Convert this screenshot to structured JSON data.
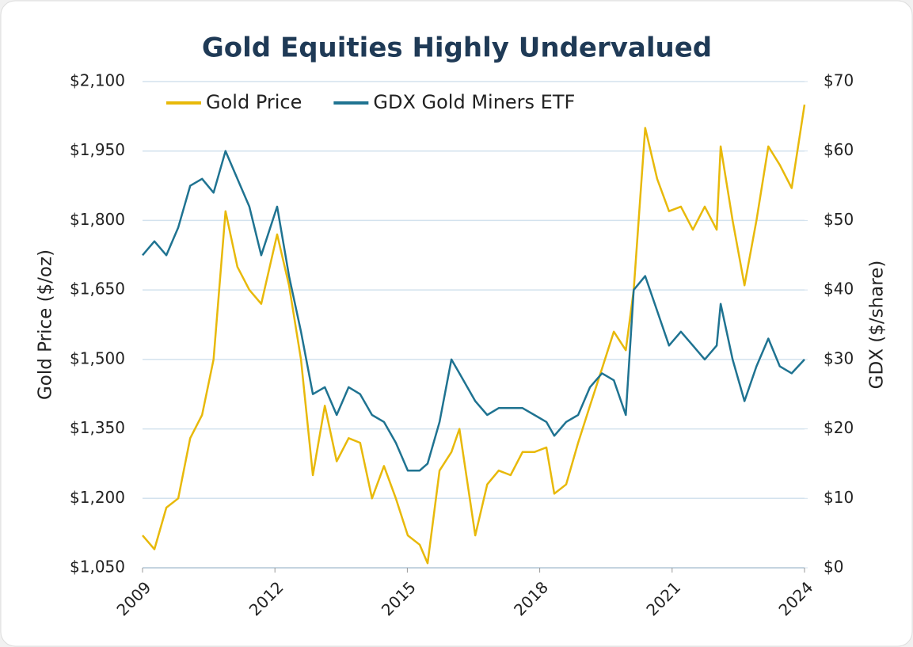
{
  "chart_data": {
    "type": "line",
    "title": "Gold Equities Highly Undervalued",
    "ylabel": "Gold Price ($/oz)",
    "y2label": "GDX ($/share)",
    "x": [
      2009.0,
      2009.27,
      2009.54,
      2009.81,
      2010.08,
      2010.35,
      2010.61,
      2010.88,
      2011.15,
      2011.42,
      2011.69,
      2012.05,
      2012.32,
      2012.59,
      2012.86,
      2013.13,
      2013.4,
      2013.67,
      2013.93,
      2014.2,
      2014.47,
      2014.74,
      2015.01,
      2015.28,
      2015.46,
      2015.73,
      2016.0,
      2016.18,
      2016.54,
      2016.81,
      2017.07,
      2017.34,
      2017.61,
      2017.88,
      2018.15,
      2018.33,
      2018.6,
      2018.87,
      2019.14,
      2019.41,
      2019.68,
      2019.95,
      2020.13,
      2020.39,
      2020.66,
      2020.93,
      2021.2,
      2021.47,
      2021.74,
      2022.01,
      2022.1,
      2022.37,
      2022.64,
      2022.91,
      2023.18,
      2023.44,
      2023.71,
      2024.0
    ],
    "series": [
      {
        "name": "Gold Price",
        "color": "#e8b90a",
        "axis": "y",
        "values": [
          1120,
          1090,
          1180,
          1200,
          1330,
          1380,
          1500,
          1820,
          1700,
          1650,
          1620,
          1770,
          1660,
          1500,
          1250,
          1400,
          1280,
          1330,
          1320,
          1200,
          1270,
          1200,
          1120,
          1100,
          1060,
          1260,
          1300,
          1350,
          1120,
          1230,
          1260,
          1250,
          1300,
          1300,
          1310,
          1210,
          1230,
          1320,
          1400,
          1480,
          1560,
          1520,
          1650,
          2000,
          1890,
          1820,
          1830,
          1780,
          1830,
          1780,
          1960,
          1800,
          1660,
          1800,
          1960,
          1920,
          1870,
          2050
        ]
      },
      {
        "name": "GDX Gold Miners ETF",
        "color": "#1f7391",
        "axis": "y2",
        "values": [
          45,
          47,
          45,
          49,
          55,
          56,
          54,
          60,
          56,
          52,
          45,
          52,
          42,
          34,
          25,
          26,
          22,
          26,
          25,
          22,
          21,
          18,
          14,
          14,
          15,
          21,
          30,
          28,
          24,
          22,
          23,
          23,
          23,
          22,
          21,
          19,
          21,
          22,
          26,
          28,
          27,
          22,
          40,
          42,
          37,
          32,
          34,
          32,
          30,
          32,
          38,
          30,
          24,
          29,
          33,
          29,
          28,
          30
        ]
      }
    ],
    "xlim": [
      2009,
      2024
    ],
    "xticks": [
      2009,
      2012,
      2015,
      2018,
      2021,
      2024
    ],
    "ylim": [
      1050,
      2100
    ],
    "yticks": [
      {
        "value": 1050,
        "label": "$1,050"
      },
      {
        "value": 1200,
        "label": "$1,200"
      },
      {
        "value": 1350,
        "label": "$1,350"
      },
      {
        "value": 1500,
        "label": "$1,500"
      },
      {
        "value": 1650,
        "label": "$1,650"
      },
      {
        "value": 1800,
        "label": "$1,800"
      },
      {
        "value": 1950,
        "label": "$1,950"
      },
      {
        "value": 2100,
        "label": "$2,100"
      }
    ],
    "y2lim": [
      0,
      70
    ],
    "y2ticks": [
      {
        "value": 0,
        "label": "$0"
      },
      {
        "value": 10,
        "label": "$10"
      },
      {
        "value": 20,
        "label": "$20"
      },
      {
        "value": 30,
        "label": "$30"
      },
      {
        "value": 40,
        "label": "$40"
      },
      {
        "value": 50,
        "label": "$50"
      },
      {
        "value": 60,
        "label": "$60"
      },
      {
        "value": 70,
        "label": "$70"
      }
    ],
    "grid": true,
    "legend": "top-left"
  }
}
